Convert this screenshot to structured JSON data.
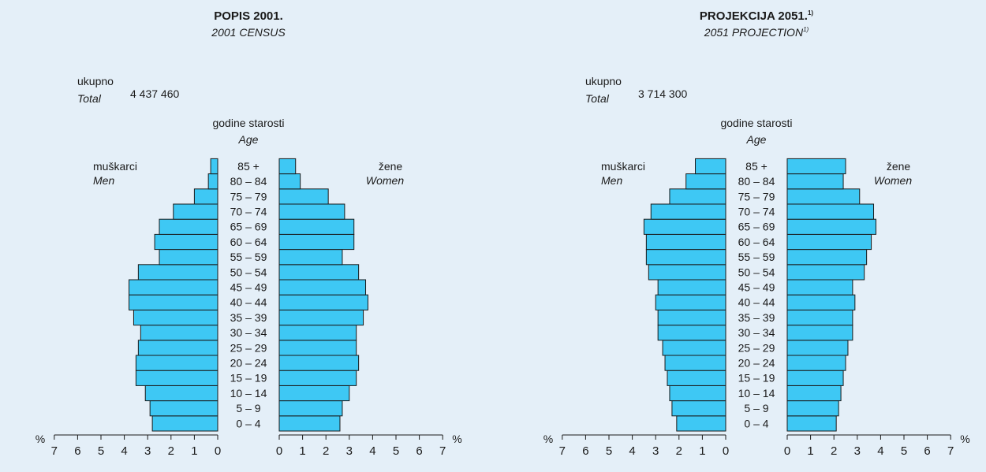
{
  "colors": {
    "background": "#e4eff8",
    "bar_fill": "#3ec8f4",
    "bar_stroke": "#1a1a1a"
  },
  "axis_unit": "%",
  "age_heading": "godine starosti",
  "age_heading_en": "Age",
  "men_label": "muškarci",
  "men_label_en": "Men",
  "women_label": "žene",
  "women_label_en": "Women",
  "total_label": "ukupno",
  "total_label_en": "Total",
  "chart_data": [
    {
      "type": "bar",
      "orientation": "horizontal-pyramid",
      "title": "POPIS 2001.",
      "subtitle": "2001 CENSUS",
      "total_value": "4 437 460",
      "categories": [
        "0 – 4",
        "5 – 9",
        "10 – 14",
        "15 – 19",
        "20 – 24",
        "25 – 29",
        "30 – 34",
        "35 – 39",
        "40 – 44",
        "45 – 49",
        "50 – 54",
        "55 – 59",
        "60 – 64",
        "65 – 69",
        "70 – 74",
        "75 – 79",
        "80 – 84",
        "85 +"
      ],
      "series": [
        {
          "name": "muškarci",
          "values": [
            2.8,
            2.9,
            3.1,
            3.5,
            3.5,
            3.4,
            3.3,
            3.6,
            3.8,
            3.8,
            3.4,
            2.5,
            2.7,
            2.5,
            1.9,
            1.0,
            0.4,
            0.3
          ]
        },
        {
          "name": "žene",
          "values": [
            2.6,
            2.7,
            3.0,
            3.3,
            3.4,
            3.3,
            3.3,
            3.6,
            3.8,
            3.7,
            3.4,
            2.7,
            3.2,
            3.2,
            2.8,
            2.1,
            0.9,
            0.7
          ]
        }
      ],
      "xlim": [
        0,
        7
      ],
      "ticks": [
        "0",
        "1",
        "2",
        "3",
        "4",
        "5",
        "6",
        "7"
      ]
    },
    {
      "type": "bar",
      "orientation": "horizontal-pyramid",
      "title": "PROJEKCIJA 2051.",
      "title_note": "1)",
      "subtitle": "2051 PROJECTION",
      "subtitle_note": "1)",
      "total_value": "3 714 300",
      "categories": [
        "0 – 4",
        "5 – 9",
        "10 – 14",
        "15 – 19",
        "20 – 24",
        "25 – 29",
        "30 – 34",
        "35 – 39",
        "40 – 44",
        "45 – 49",
        "50 – 54",
        "55 – 59",
        "60 – 64",
        "65 – 69",
        "70 – 74",
        "75 – 79",
        "80 – 84",
        "85 +"
      ],
      "series": [
        {
          "name": "muškarci",
          "values": [
            2.1,
            2.3,
            2.4,
            2.5,
            2.6,
            2.7,
            2.9,
            2.9,
            3.0,
            2.9,
            3.3,
            3.4,
            3.4,
            3.5,
            3.2,
            2.4,
            1.7,
            1.3
          ]
        },
        {
          "name": "žene",
          "values": [
            2.1,
            2.2,
            2.3,
            2.4,
            2.5,
            2.6,
            2.8,
            2.8,
            2.9,
            2.8,
            3.3,
            3.4,
            3.6,
            3.8,
            3.7,
            3.1,
            2.4,
            2.5
          ]
        }
      ],
      "xlim": [
        0,
        7
      ],
      "ticks": [
        "0",
        "1",
        "2",
        "3",
        "4",
        "5",
        "6",
        "7"
      ]
    }
  ]
}
